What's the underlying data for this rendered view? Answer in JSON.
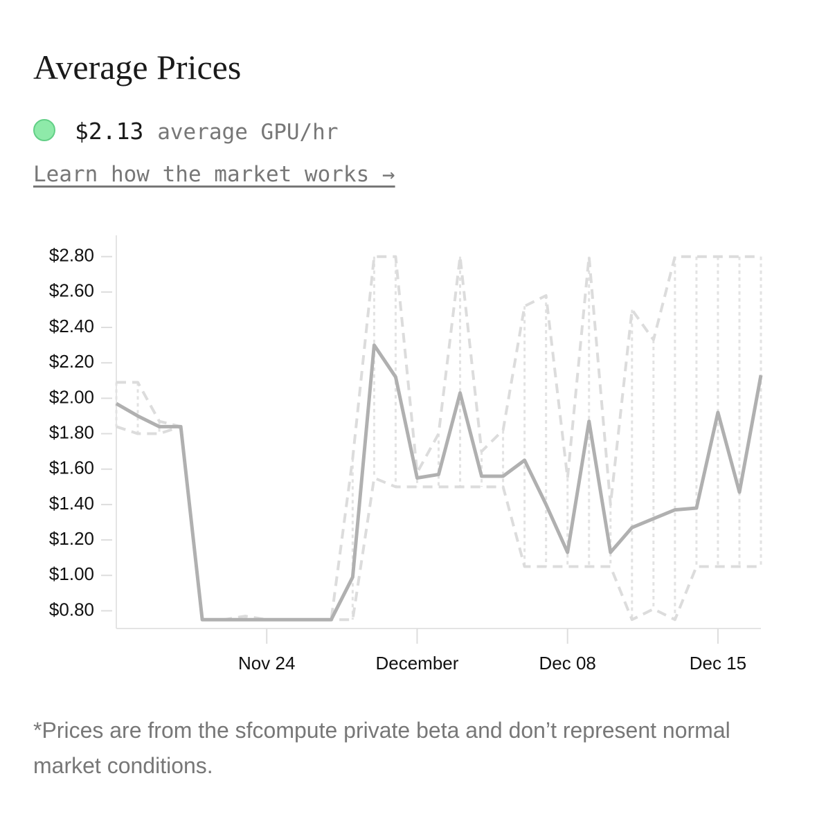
{
  "header": {
    "title": "Average Prices",
    "price": "$2.13",
    "price_caption": "average GPU/hr",
    "link": "Learn how the market works →"
  },
  "chart_data": {
    "type": "line",
    "categories": [
      "Nov 17",
      "Nov 18",
      "Nov 19",
      "Nov 20",
      "Nov 21",
      "Nov 22",
      "Nov 23",
      "Nov 24",
      "Nov 25",
      "Nov 26",
      "Nov 27",
      "Nov 28",
      "Nov 29",
      "Nov 30",
      "Dec 01",
      "Dec 02",
      "Dec 03",
      "Dec 04",
      "Dec 05",
      "Dec 06",
      "Dec 07",
      "Dec 08",
      "Dec 09",
      "Dec 10",
      "Dec 11",
      "Dec 12",
      "Dec 13",
      "Dec 14",
      "Dec 15",
      "Dec 16",
      "Dec 17"
    ],
    "series": [
      {
        "color": "#dcdcdc",
        "dash": true,
        "values": [
          2.09,
          2.09,
          1.87,
          1.84,
          0.75,
          0.75,
          0.77,
          0.75,
          0.75,
          0.75,
          0.75,
          1.66,
          2.8,
          2.8,
          1.58,
          1.8,
          2.8,
          1.7,
          1.82,
          2.52,
          2.58,
          1.55,
          2.8,
          1.4,
          2.5,
          2.33,
          2.8,
          2.8,
          2.8,
          2.8,
          2.8
        ]
      },
      {
        "color": "#dcdcdc",
        "dash": true,
        "values": [
          1.84,
          1.8,
          1.8,
          1.84,
          0.75,
          0.75,
          0.75,
          0.75,
          0.75,
          0.75,
          0.75,
          0.75,
          1.55,
          1.5,
          1.5,
          1.5,
          1.5,
          1.5,
          1.5,
          1.05,
          1.05,
          1.05,
          1.05,
          1.05,
          0.75,
          0.81,
          0.75,
          1.05,
          1.05,
          1.05,
          1.05
        ]
      },
      {
        "color": "#b0b0b0",
        "dash": false,
        "values": [
          1.97,
          1.9,
          1.84,
          1.84,
          0.75,
          0.75,
          0.75,
          0.75,
          0.75,
          0.75,
          0.75,
          0.99,
          2.3,
          2.12,
          1.55,
          1.57,
          2.03,
          1.56,
          1.56,
          1.65,
          1.4,
          1.13,
          1.87,
          1.13,
          1.27,
          1.32,
          1.37,
          1.38,
          1.92,
          1.47,
          2.13
        ]
      }
    ],
    "ylim": [
      0.7,
      2.92
    ],
    "yticks": [
      {
        "value": 0.8,
        "label": "$0.80"
      },
      {
        "value": 1.0,
        "label": "$1.00"
      },
      {
        "value": 1.2,
        "label": "$1.20"
      },
      {
        "value": 1.4,
        "label": "$1.40"
      },
      {
        "value": 1.6,
        "label": "$1.60"
      },
      {
        "value": 1.8,
        "label": "$1.80"
      },
      {
        "value": 2.0,
        "label": "$2.00"
      },
      {
        "value": 2.2,
        "label": "$2.20"
      },
      {
        "value": 2.4,
        "label": "$2.40"
      },
      {
        "value": 2.6,
        "label": "$2.60"
      },
      {
        "value": 2.8,
        "label": "$2.80"
      }
    ],
    "xticks": [
      {
        "value": "Nov 24",
        "label": "Nov 24"
      },
      {
        "value": "Dec 01",
        "label": "December"
      },
      {
        "value": "Dec 08",
        "label": "Dec 08"
      },
      {
        "value": "Dec 15",
        "label": "Dec 15"
      }
    ]
  },
  "footnote": "*Prices are from the sfcompute private beta and don’t represent normal market conditions."
}
